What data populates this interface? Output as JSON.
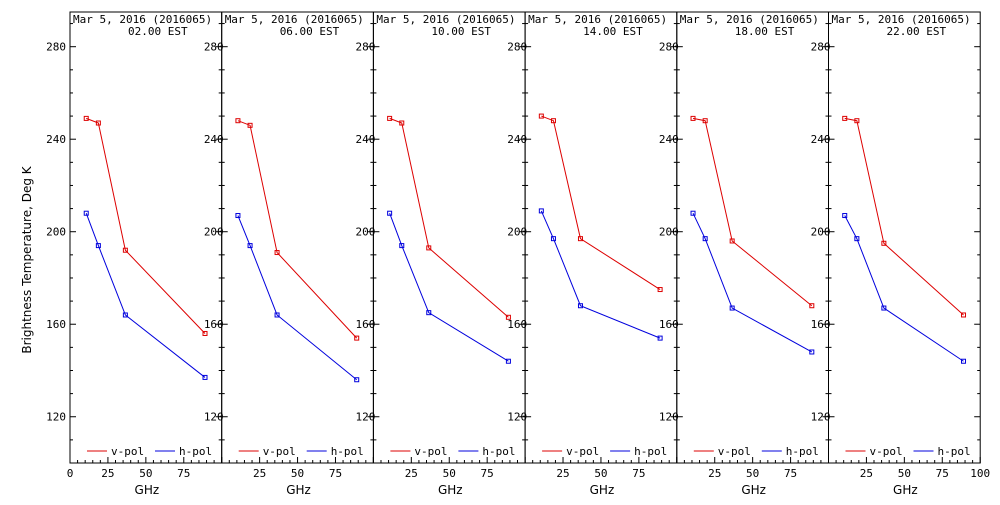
{
  "ylabel": "Brightness Temperature, Deg K",
  "colors": {
    "vpol": "#dd0000",
    "hpol": "#0000dd",
    "axis": "#000000"
  },
  "chart_data": [
    {
      "type": "line",
      "title_date": "Mar  5, 2016 (2016065)",
      "title_time": "02.00 EST",
      "xlabel": "GHz",
      "xlim": [
        0,
        100
      ],
      "ylim": [
        100,
        295
      ],
      "xticks": [
        0,
        25,
        50,
        75
      ],
      "yticks": [
        120,
        160,
        200,
        240,
        280
      ],
      "ytick_side": "left",
      "legend": [
        "v-pol",
        "h-pol"
      ],
      "series": [
        {
          "name": "v-pol",
          "x": [
            10.7,
            18.7,
            36.5,
            89
          ],
          "y": [
            249,
            247,
            192,
            156
          ]
        },
        {
          "name": "h-pol",
          "x": [
            10.7,
            18.7,
            36.5,
            89
          ],
          "y": [
            208,
            194,
            164,
            137
          ]
        }
      ]
    },
    {
      "type": "line",
      "title_date": "Mar  5, 2016 (2016065)",
      "title_time": "06.00 EST",
      "xlabel": "GHz",
      "xlim": [
        0,
        100
      ],
      "ylim": [
        100,
        295
      ],
      "xticks": [
        25,
        50,
        75
      ],
      "yticks": [
        120,
        160,
        200,
        240,
        280
      ],
      "ytick_side": "right",
      "legend": [
        "v-pol",
        "h-pol"
      ],
      "series": [
        {
          "name": "v-pol",
          "x": [
            10.7,
            18.7,
            36.5,
            89
          ],
          "y": [
            248,
            246,
            191,
            154
          ]
        },
        {
          "name": "h-pol",
          "x": [
            10.7,
            18.7,
            36.5,
            89
          ],
          "y": [
            207,
            194,
            164,
            136
          ]
        }
      ]
    },
    {
      "type": "line",
      "title_date": "Mar  5, 2016 (2016065)",
      "title_time": "10.00 EST",
      "xlabel": "GHz",
      "xlim": [
        0,
        100
      ],
      "ylim": [
        100,
        295
      ],
      "xticks": [
        25,
        50,
        75
      ],
      "yticks": [
        120,
        160,
        200,
        240,
        280
      ],
      "ytick_side": "right",
      "legend": [
        "v-pol",
        "h-pol"
      ],
      "series": [
        {
          "name": "v-pol",
          "x": [
            10.7,
            18.7,
            36.5,
            89
          ],
          "y": [
            249,
            247,
            193,
            163
          ]
        },
        {
          "name": "h-pol",
          "x": [
            10.7,
            18.7,
            36.5,
            89
          ],
          "y": [
            208,
            194,
            165,
            144
          ]
        }
      ]
    },
    {
      "type": "line",
      "title_date": "Mar  5, 2016 (2016065)",
      "title_time": "14.00 EST",
      "xlabel": "GHz",
      "xlim": [
        0,
        100
      ],
      "ylim": [
        100,
        295
      ],
      "xticks": [
        25,
        50,
        75
      ],
      "yticks": [
        120,
        160,
        200,
        240,
        280
      ],
      "ytick_side": "right",
      "legend": [
        "v-pol",
        "h-pol"
      ],
      "series": [
        {
          "name": "v-pol",
          "x": [
            10.7,
            18.7,
            36.5,
            89
          ],
          "y": [
            250,
            248,
            197,
            175
          ]
        },
        {
          "name": "h-pol",
          "x": [
            10.7,
            18.7,
            36.5,
            89
          ],
          "y": [
            209,
            197,
            168,
            154
          ]
        }
      ]
    },
    {
      "type": "line",
      "title_date": "Mar  5, 2016 (2016065)",
      "title_time": "18.00 EST",
      "xlabel": "GHz",
      "xlim": [
        0,
        100
      ],
      "ylim": [
        100,
        295
      ],
      "xticks": [
        25,
        50,
        75
      ],
      "yticks": [
        120,
        160,
        200,
        240,
        280
      ],
      "ytick_side": "right",
      "legend": [
        "v-pol",
        "h-pol"
      ],
      "series": [
        {
          "name": "v-pol",
          "x": [
            10.7,
            18.7,
            36.5,
            89
          ],
          "y": [
            249,
            248,
            196,
            168
          ]
        },
        {
          "name": "h-pol",
          "x": [
            10.7,
            18.7,
            36.5,
            89
          ],
          "y": [
            208,
            197,
            167,
            148
          ]
        }
      ]
    },
    {
      "type": "line",
      "title_date": "Mar  5, 2016 (2016065)",
      "title_time": "22.00 EST",
      "xlabel": "GHz",
      "xlim": [
        0,
        100
      ],
      "ylim": [
        100,
        295
      ],
      "xticks": [
        25,
        50,
        75,
        100
      ],
      "yticks": [
        120,
        160,
        200,
        240,
        280
      ],
      "ytick_side": "right",
      "legend": [
        "v-pol",
        "h-pol"
      ],
      "series": [
        {
          "name": "v-pol",
          "x": [
            10.7,
            18.7,
            36.5,
            89
          ],
          "y": [
            249,
            248,
            195,
            164
          ]
        },
        {
          "name": "h-pol",
          "x": [
            10.7,
            18.7,
            36.5,
            89
          ],
          "y": [
            207,
            197,
            167,
            144
          ]
        }
      ]
    }
  ]
}
